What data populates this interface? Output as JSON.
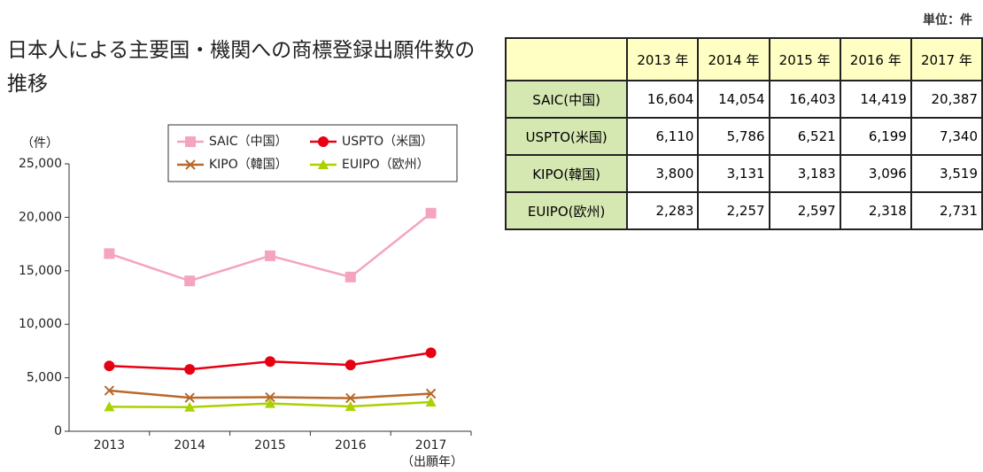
{
  "chart_data": {
    "type": "line",
    "title": "日本人による主要国・機関への商標登録出願件数の推移",
    "y_label": "（件）",
    "x_label": "（出願年）",
    "categories": [
      "2013",
      "2014",
      "2015",
      "2016",
      "2017"
    ],
    "series": [
      {
        "name": "SAIC（中国）",
        "color": "#f4a3c0",
        "marker": "square",
        "values": [
          16604,
          14054,
          16403,
          14419,
          20387
        ]
      },
      {
        "name": "USPTO（米国）",
        "color": "#e60012",
        "marker": "circle",
        "values": [
          6110,
          5786,
          6521,
          6199,
          7340
        ]
      },
      {
        "name": "KIPO（韓国）",
        "color": "#b8682a",
        "marker": "x",
        "values": [
          3800,
          3131,
          3183,
          3096,
          3519
        ]
      },
      {
        "name": "EUIPO（欧州）",
        "color": "#a9d200",
        "marker": "triangle",
        "values": [
          2283,
          2257,
          2597,
          2318,
          2731
        ]
      }
    ],
    "ylim": [
      0,
      25000
    ],
    "yticks": [
      0,
      {
        "value": 5000,
        "label": "5,000"
      },
      {
        "value": 10000,
        "label": "10,000"
      },
      {
        "value": 15000,
        "label": "15,000"
      },
      {
        "value": 20000,
        "label": "20,000"
      },
      {
        "value": 25000,
        "label": "25,000"
      }
    ]
  },
  "table": {
    "unit": "単位：件",
    "columns": [
      "2013 年",
      "2014 年",
      "2015 年",
      "2016 年",
      "2017 年"
    ],
    "rows": [
      {
        "label": "SAIC(中国)",
        "cells": [
          "16,604",
          "14,054",
          "16,403",
          "14,419",
          "20,387"
        ]
      },
      {
        "label": "USPTO(米国)",
        "cells": [
          "6,110",
          "5,786",
          "6,521",
          "6,199",
          "7,340"
        ]
      },
      {
        "label": "KIPO(韓国)",
        "cells": [
          "3,800",
          "3,131",
          "3,183",
          "3,096",
          "3,519"
        ]
      },
      {
        "label": "EUIPO(欧州)",
        "cells": [
          "2,283",
          "2,257",
          "2,597",
          "2,318",
          "2,731"
        ]
      }
    ]
  }
}
